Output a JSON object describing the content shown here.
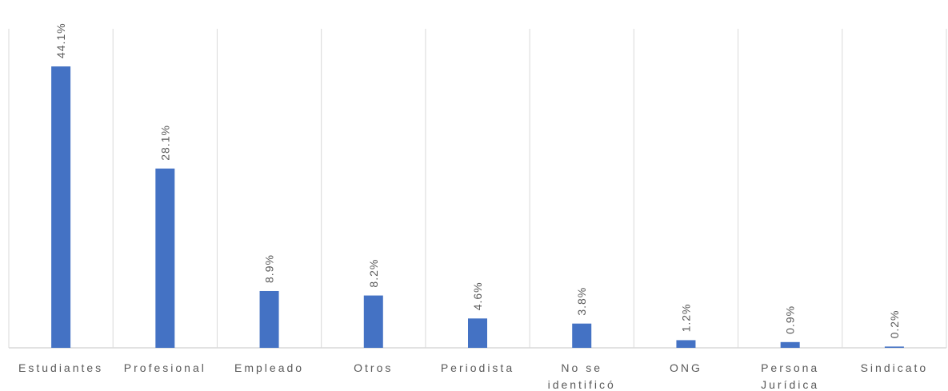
{
  "chart_data": {
    "type": "bar",
    "categories": [
      "Estudiantes",
      "Profesional",
      "Empleado",
      "Otros",
      "Periodista",
      "No se identificó",
      "ONG",
      "Persona Jurídica",
      "Sindicato"
    ],
    "values": [
      44.1,
      28.1,
      8.9,
      8.2,
      4.6,
      3.8,
      1.2,
      0.9,
      0.2
    ],
    "value_labels": [
      "44.1%",
      "28.1%",
      "8.9%",
      "8.2%",
      "4.6%",
      "3.8%",
      "1.2%",
      "0.9%",
      "0.2%"
    ],
    "color": "#4472c4",
    "ylim": [
      0,
      50
    ]
  }
}
